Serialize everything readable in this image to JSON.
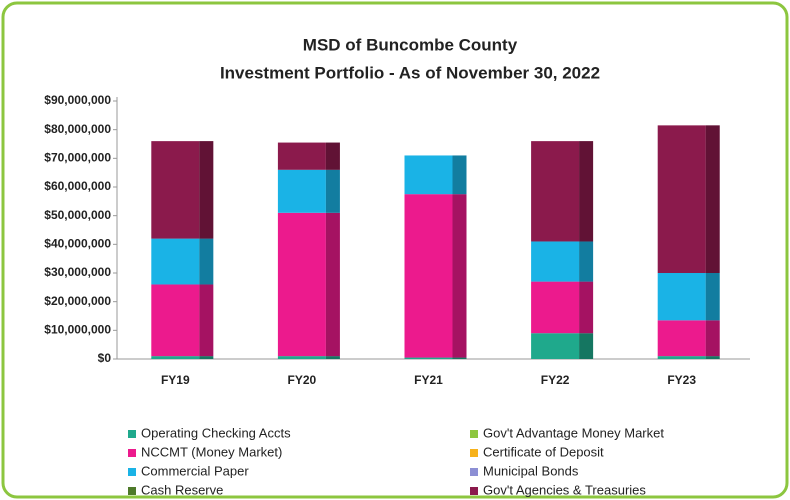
{
  "chart_data": {
    "type": "stacked_bar",
    "title": "MSD of Buncombe County",
    "subtitle": "Investment Portfolio - As of November 30, 2022",
    "categories": [
      "FY19",
      "FY20",
      "FY21",
      "FY22",
      "FY23"
    ],
    "series": [
      {
        "name": "Operating Checking Accts",
        "color": "#1fa98c",
        "values": [
          1000000,
          1000000,
          500000,
          9000000,
          1000000
        ]
      },
      {
        "name": "Gov't Advantage Money Market",
        "color": "#8dc63f",
        "values": [
          0,
          0,
          0,
          0,
          0
        ]
      },
      {
        "name": "NCCMT (Money Market)",
        "color": "#ec1a8d",
        "values": [
          25000000,
          50000000,
          57000000,
          18000000,
          12500000
        ]
      },
      {
        "name": "Certificate of Deposit",
        "color": "#f7b21b",
        "values": [
          0,
          0,
          0,
          0,
          0
        ]
      },
      {
        "name": "Commercial  Paper",
        "color": "#1ab3e6",
        "values": [
          16000000,
          15000000,
          13500000,
          14000000,
          16500000
        ]
      },
      {
        "name": "Municipal Bonds",
        "color": "#8c8fd4",
        "values": [
          0,
          0,
          0,
          0,
          0
        ]
      },
      {
        "name": "Cash Reserve",
        "color": "#4e7a2a",
        "values": [
          0,
          0,
          0,
          0,
          0
        ]
      },
      {
        "name": "Gov't Agencies & Treasuries",
        "color": "#8b1a4c",
        "values": [
          34000000,
          9500000,
          0,
          35000000,
          51500000
        ]
      }
    ],
    "ylim": [
      0,
      90000000
    ],
    "yticks": [
      {
        "value": 0,
        "label": "$0"
      },
      {
        "value": 10000000,
        "label": "$10,000,000"
      },
      {
        "value": 20000000,
        "label": "$20,000,000"
      },
      {
        "value": 30000000,
        "label": "$30,000,000"
      },
      {
        "value": 40000000,
        "label": "$40,000,000"
      },
      {
        "value": 50000000,
        "label": "$50,000,000"
      },
      {
        "value": 60000000,
        "label": "$60,000,000"
      },
      {
        "value": 70000000,
        "label": "$70,000,000"
      },
      {
        "value": 80000000,
        "label": "$80,000,000"
      },
      {
        "value": 90000000,
        "label": "$90,000,000"
      }
    ]
  }
}
